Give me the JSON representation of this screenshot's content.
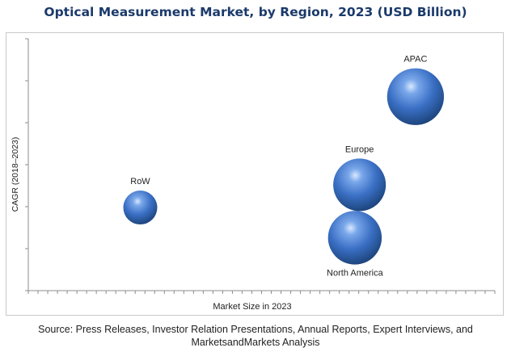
{
  "chart_data": {
    "type": "scatter",
    "title": "Optical Measurement Market, by Region, 2023 (USD Billion)",
    "xlabel": "Market Size in 2023",
    "ylabel": "CAGR (2018–2023)",
    "xlim": [
      0,
      100
    ],
    "ylim": [
      0,
      100
    ],
    "grid": false,
    "bubble_color": "#3a6fc4",
    "series": [
      {
        "points": [
          {
            "label": "RoW",
            "x": 24,
            "y": 33,
            "size": 1.0,
            "label_position": "above"
          },
          {
            "label": "Europe",
            "x": 71,
            "y": 42,
            "size": 2.4,
            "label_position": "above"
          },
          {
            "label": "North America",
            "x": 70,
            "y": 21,
            "size": 2.5,
            "label_position": "below"
          },
          {
            "label": "APAC",
            "x": 83,
            "y": 77,
            "size": 2.8,
            "label_position": "above"
          }
        ]
      }
    ]
  },
  "source": "Source: Press Releases, Investor Relation Presentations, Annual Reports, Expert Interviews, and MarketsandMarkets Analysis"
}
